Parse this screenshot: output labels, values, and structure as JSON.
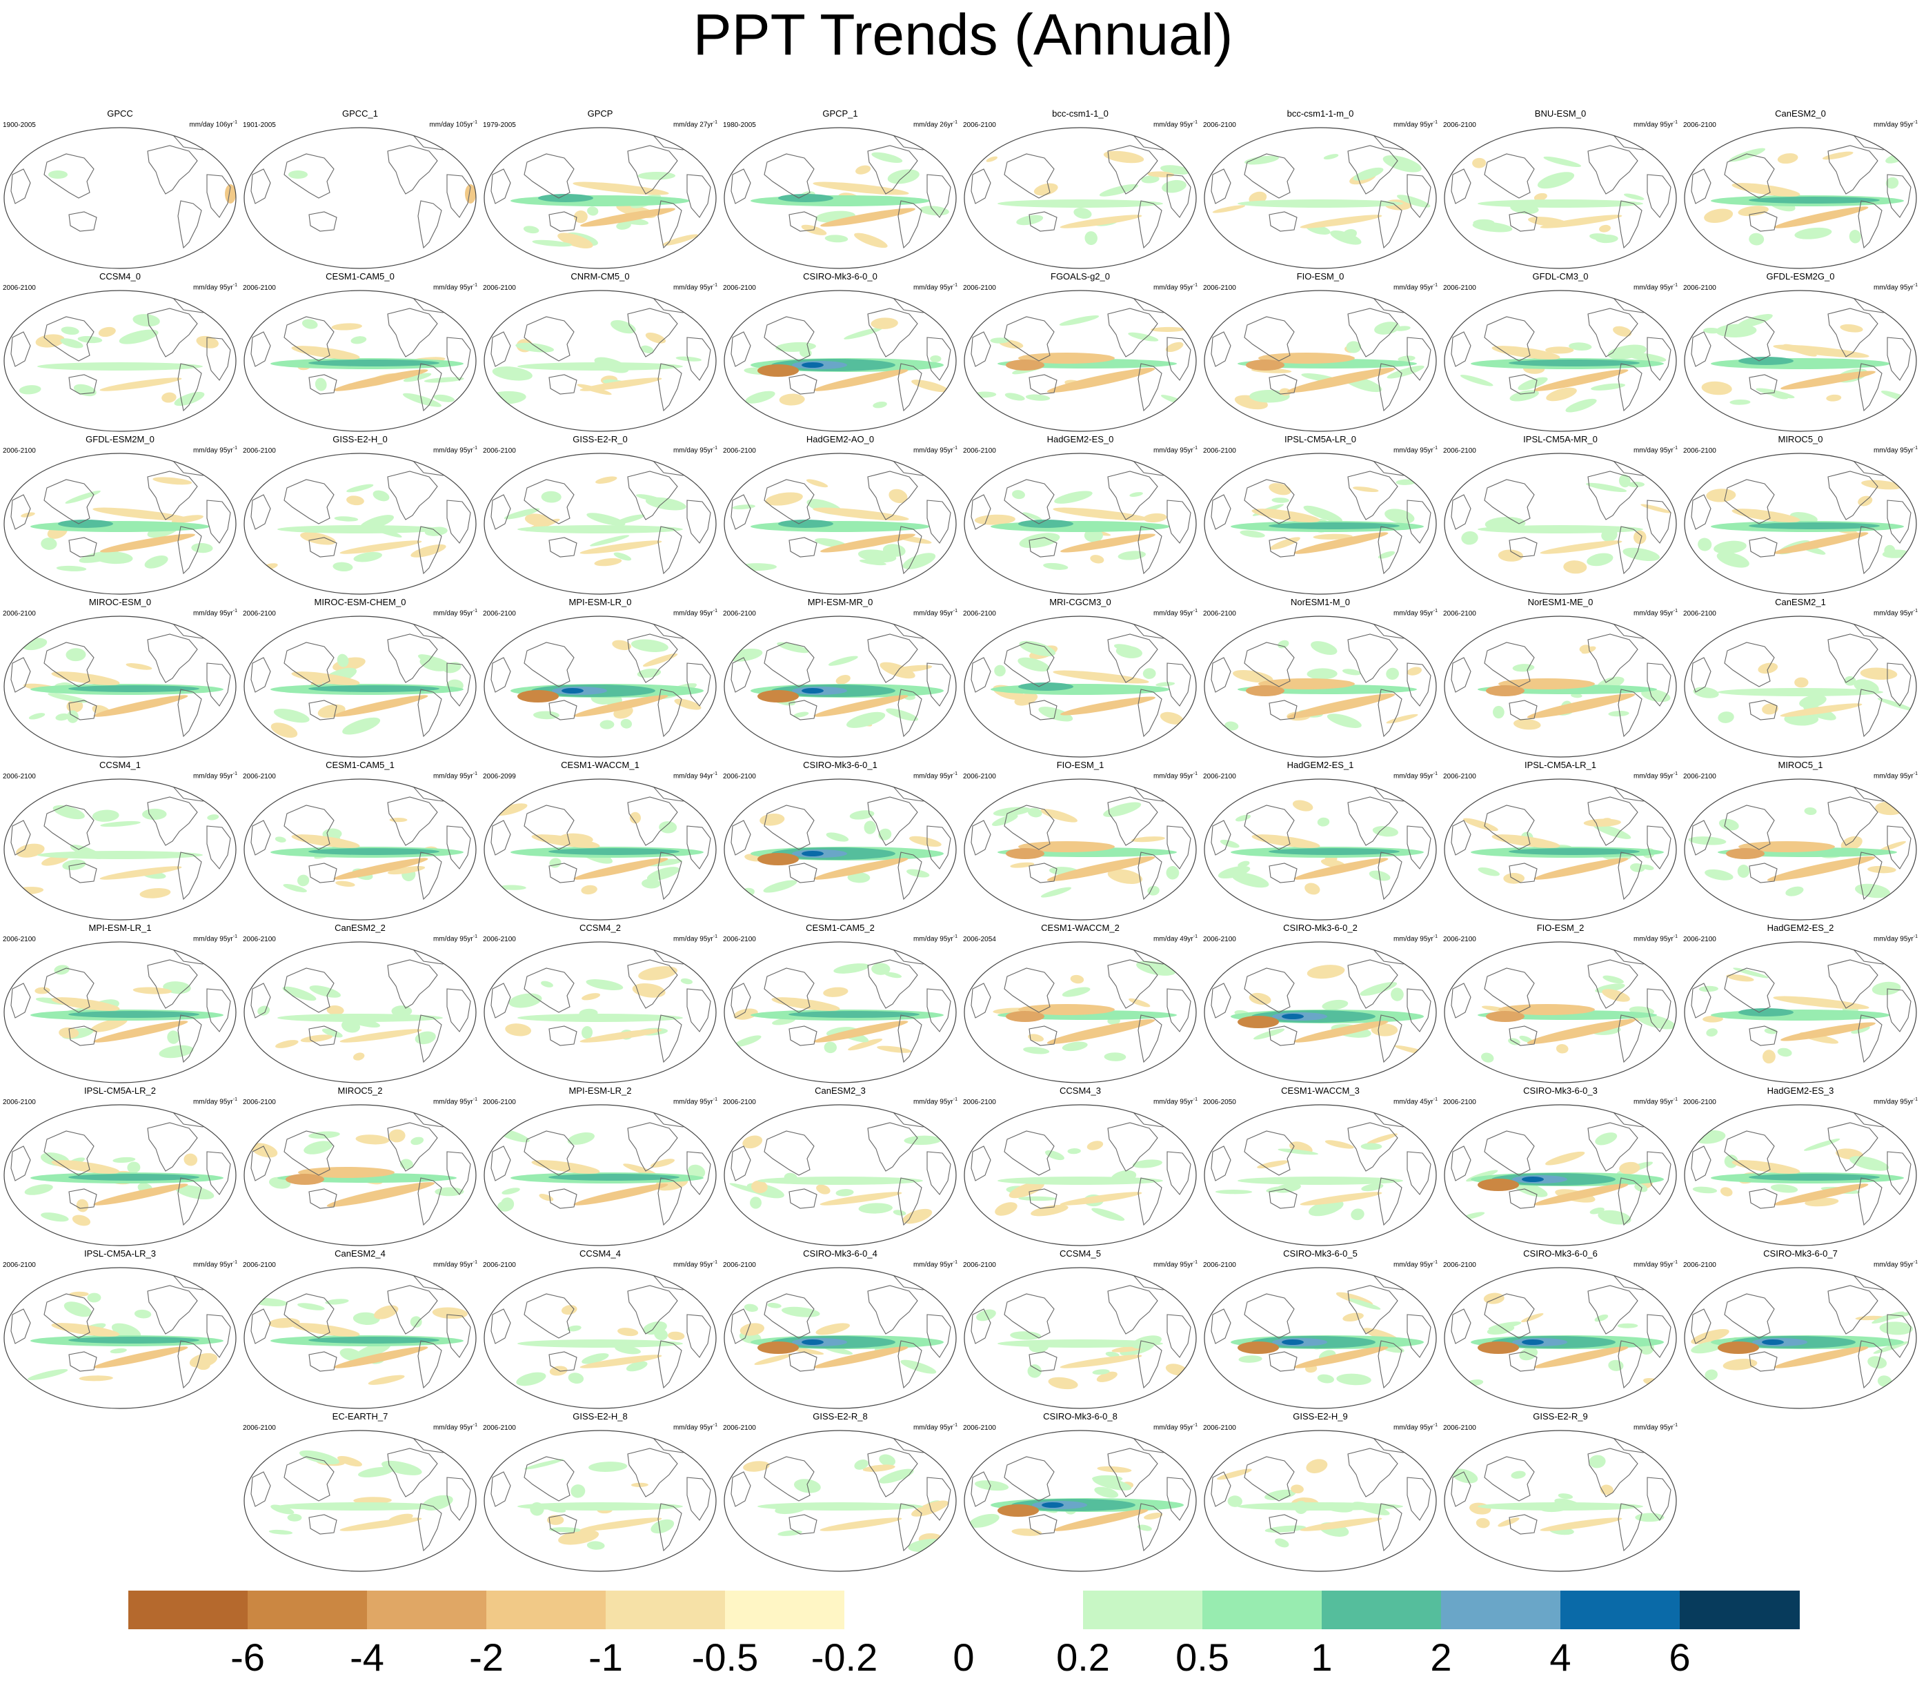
{
  "title": "PPT Trends (Annual)",
  "panels": [
    {
      "name": "GPCC",
      "period": "1900-2005",
      "units": "mm/day 106yr",
      "style": "obs"
    },
    {
      "name": "GPCC_1",
      "period": "1901-2005",
      "units": "mm/day 105yr",
      "style": "obs"
    },
    {
      "name": "GPCP",
      "period": "1979-2005",
      "units": "mm/day 27yr",
      "style": "mixed"
    },
    {
      "name": "GPCP_1",
      "period": "1980-2005",
      "units": "mm/day 26yr",
      "style": "mixed"
    },
    {
      "name": "bcc-csm1-1_0",
      "period": "2006-2100",
      "units": "mm/day 95yr",
      "style": "light"
    },
    {
      "name": "bcc-csm1-1-m_0",
      "period": "2006-2100",
      "units": "mm/day 95yr",
      "style": "light"
    },
    {
      "name": "BNU-ESM_0",
      "period": "2006-2100",
      "units": "mm/day 95yr",
      "style": "light"
    },
    {
      "name": "CanESM2_0",
      "period": "2006-2100",
      "units": "mm/day 95yr",
      "style": "band"
    },
    {
      "name": "CCSM4_0",
      "period": "2006-2100",
      "units": "mm/day 95yr",
      "style": "light"
    },
    {
      "name": "CESM1-CAM5_0",
      "period": "2006-2100",
      "units": "mm/day 95yr",
      "style": "band"
    },
    {
      "name": "CNRM-CM5_0",
      "period": "2006-2100",
      "units": "mm/day 95yr",
      "style": "light"
    },
    {
      "name": "CSIRO-Mk3-6-0_0",
      "period": "2006-2100",
      "units": "mm/day 95yr",
      "style": "strong"
    },
    {
      "name": "FGOALS-g2_0",
      "period": "2006-2100",
      "units": "mm/day 95yr",
      "style": "dry"
    },
    {
      "name": "FIO-ESM_0",
      "period": "2006-2100",
      "units": "mm/day 95yr",
      "style": "dry"
    },
    {
      "name": "GFDL-CM3_0",
      "period": "2006-2100",
      "units": "mm/day 95yr",
      "style": "band"
    },
    {
      "name": "GFDL-ESM2G_0",
      "period": "2006-2100",
      "units": "mm/day 95yr",
      "style": "mixed"
    },
    {
      "name": "GFDL-ESM2M_0",
      "period": "2006-2100",
      "units": "mm/day 95yr",
      "style": "mixed"
    },
    {
      "name": "GISS-E2-H_0",
      "period": "2006-2100",
      "units": "mm/day 95yr",
      "style": "light"
    },
    {
      "name": "GISS-E2-R_0",
      "period": "2006-2100",
      "units": "mm/day 95yr",
      "style": "light"
    },
    {
      "name": "HadGEM2-AO_0",
      "period": "2006-2100",
      "units": "mm/day 95yr",
      "style": "mixed"
    },
    {
      "name": "HadGEM2-ES_0",
      "period": "2006-2100",
      "units": "mm/day 95yr",
      "style": "mixed"
    },
    {
      "name": "IPSL-CM5A-LR_0",
      "period": "2006-2100",
      "units": "mm/day 95yr",
      "style": "band"
    },
    {
      "name": "IPSL-CM5A-MR_0",
      "period": "2006-2100",
      "units": "mm/day 95yr",
      "style": "light"
    },
    {
      "name": "MIROC5_0",
      "period": "2006-2100",
      "units": "mm/day 95yr",
      "style": "band"
    },
    {
      "name": "MIROC-ESM_0",
      "period": "2006-2100",
      "units": "mm/day 95yr",
      "style": "band"
    },
    {
      "name": "MIROC-ESM-CHEM_0",
      "period": "2006-2100",
      "units": "mm/day 95yr",
      "style": "band"
    },
    {
      "name": "MPI-ESM-LR_0",
      "period": "2006-2100",
      "units": "mm/day 95yr",
      "style": "strong"
    },
    {
      "name": "MPI-ESM-MR_0",
      "period": "2006-2100",
      "units": "mm/day 95yr",
      "style": "strong"
    },
    {
      "name": "MRI-CGCM3_0",
      "period": "2006-2100",
      "units": "mm/day 95yr",
      "style": "mixed"
    },
    {
      "name": "NorESM1-M_0",
      "period": "2006-2100",
      "units": "mm/day 95yr",
      "style": "dry"
    },
    {
      "name": "NorESM1-ME_0",
      "period": "2006-2100",
      "units": "mm/day 95yr",
      "style": "dry"
    },
    {
      "name": "CanESM2_1",
      "period": "2006-2100",
      "units": "mm/day 95yr",
      "style": "light"
    },
    {
      "name": "CCSM4_1",
      "period": "2006-2100",
      "units": "mm/day 95yr",
      "style": "light"
    },
    {
      "name": "CESM1-CAM5_1",
      "period": "2006-2100",
      "units": "mm/day 95yr",
      "style": "band"
    },
    {
      "name": "CESM1-WACCM_1",
      "period": "2006-2099",
      "units": "mm/day 94yr",
      "style": "band"
    },
    {
      "name": "CSIRO-Mk3-6-0_1",
      "period": "2006-2100",
      "units": "mm/day 95yr",
      "style": "strong"
    },
    {
      "name": "FIO-ESM_1",
      "period": "2006-2100",
      "units": "mm/day 95yr",
      "style": "dry"
    },
    {
      "name": "HadGEM2-ES_1",
      "period": "2006-2100",
      "units": "mm/day 95yr",
      "style": "band"
    },
    {
      "name": "IPSL-CM5A-LR_1",
      "period": "2006-2100",
      "units": "mm/day 95yr",
      "style": "band"
    },
    {
      "name": "MIROC5_1",
      "period": "2006-2100",
      "units": "mm/day 95yr",
      "style": "dry"
    },
    {
      "name": "MPI-ESM-LR_1",
      "period": "2006-2100",
      "units": "mm/day 95yr",
      "style": "band"
    },
    {
      "name": "CanESM2_2",
      "period": "2006-2100",
      "units": "mm/day 95yr",
      "style": "light"
    },
    {
      "name": "CCSM4_2",
      "period": "2006-2100",
      "units": "mm/day 95yr",
      "style": "light"
    },
    {
      "name": "CESM1-CAM5_2",
      "period": "2006-2100",
      "units": "mm/day 95yr",
      "style": "band"
    },
    {
      "name": "CESM1-WACCM_2",
      "period": "2006-2054",
      "units": "mm/day 49yr",
      "style": "dry"
    },
    {
      "name": "CSIRO-Mk3-6-0_2",
      "period": "2006-2100",
      "units": "mm/day 95yr",
      "style": "strong"
    },
    {
      "name": "FIO-ESM_2",
      "period": "2006-2100",
      "units": "mm/day 95yr",
      "style": "dry"
    },
    {
      "name": "HadGEM2-ES_2",
      "period": "2006-2100",
      "units": "mm/day 95yr",
      "style": "mixed"
    },
    {
      "name": "IPSL-CM5A-LR_2",
      "period": "2006-2100",
      "units": "mm/day 95yr",
      "style": "band"
    },
    {
      "name": "MIROC5_2",
      "period": "2006-2100",
      "units": "mm/day 95yr",
      "style": "dry"
    },
    {
      "name": "MPI-ESM-LR_2",
      "period": "2006-2100",
      "units": "mm/day 95yr",
      "style": "band"
    },
    {
      "name": "CanESM2_3",
      "period": "2006-2100",
      "units": "mm/day 95yr",
      "style": "light"
    },
    {
      "name": "CCSM4_3",
      "period": "2006-2100",
      "units": "mm/day 95yr",
      "style": "light"
    },
    {
      "name": "CESM1-WACCM_3",
      "period": "2006-2050",
      "units": "mm/day 45yr",
      "style": "light"
    },
    {
      "name": "CSIRO-Mk3-6-0_3",
      "period": "2006-2100",
      "units": "mm/day 95yr",
      "style": "strong"
    },
    {
      "name": "HadGEM2-ES_3",
      "period": "2006-2100",
      "units": "mm/day 95yr",
      "style": "band"
    },
    {
      "name": "IPSL-CM5A-LR_3",
      "period": "2006-2100",
      "units": "mm/day 95yr",
      "style": "band"
    },
    {
      "name": "CanESM2_4",
      "period": "2006-2100",
      "units": "mm/day 95yr",
      "style": "band"
    },
    {
      "name": "CCSM4_4",
      "period": "2006-2100",
      "units": "mm/day 95yr",
      "style": "light"
    },
    {
      "name": "CSIRO-Mk3-6-0_4",
      "period": "2006-2100",
      "units": "mm/day 95yr",
      "style": "strong"
    },
    {
      "name": "CCSM4_5",
      "period": "2006-2100",
      "units": "mm/day 95yr",
      "style": "light"
    },
    {
      "name": "CSIRO-Mk3-6-0_5",
      "period": "2006-2100",
      "units": "mm/day 95yr",
      "style": "strong"
    },
    {
      "name": "CSIRO-Mk3-6-0_6",
      "period": "2006-2100",
      "units": "mm/day 95yr",
      "style": "strong"
    },
    {
      "name": "CSIRO-Mk3-6-0_7",
      "period": "2006-2100",
      "units": "mm/day 95yr",
      "style": "strong"
    },
    {
      "name": "EC-EARTH_7",
      "period": "2006-2100",
      "units": "mm/day 95yr",
      "style": "light"
    },
    {
      "name": "GISS-E2-H_8",
      "period": "2006-2100",
      "units": "mm/day 95yr",
      "style": "light"
    },
    {
      "name": "GISS-E2-R_8",
      "period": "2006-2100",
      "units": "mm/day 95yr",
      "style": "light"
    },
    {
      "name": "CSIRO-Mk3-6-0_8",
      "period": "2006-2100",
      "units": "mm/day 95yr",
      "style": "strong"
    },
    {
      "name": "GISS-E2-H_9",
      "period": "2006-2100",
      "units": "mm/day 95yr",
      "style": "light"
    },
    {
      "name": "GISS-E2-R_9",
      "period": "2006-2100",
      "units": "mm/day 95yr",
      "style": "light"
    }
  ],
  "colorbar": {
    "colors": [
      "#b5692d",
      "#cb8742",
      "#e0a765",
      "#f1c987",
      "#f6e1a7",
      "#fff6c5",
      "#ffffff",
      "#ffffff",
      "#c8f7c5",
      "#98ecb0",
      "#55be9c",
      "#6aa6c8",
      "#0a6aa8",
      "#073b5c"
    ],
    "labels": [
      "-6",
      "-4",
      "-2",
      "-1",
      "-0.5",
      "-0.2",
      "0",
      "0.2",
      "0.5",
      "1",
      "2",
      "4",
      "6"
    ]
  },
  "palette": {
    "coast": "#666666",
    "frame": "#444444"
  }
}
